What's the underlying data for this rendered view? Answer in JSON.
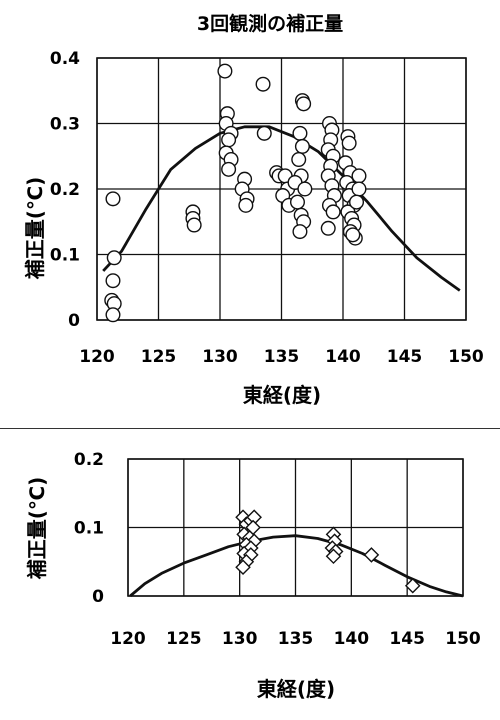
{
  "chart_data": [
    {
      "type": "scatter",
      "title": "3回観測の補正量",
      "xlabel": "東経(度)",
      "ylabel": "補正量(℃)",
      "xlim": [
        120,
        150
      ],
      "ylim": [
        0,
        0.4
      ],
      "xticks": [
        "120",
        "125",
        "130",
        "135",
        "140",
        "145",
        "150"
      ],
      "yticks": [
        "0",
        "0.1",
        "0.2",
        "0.3",
        "0.4"
      ],
      "grid": true,
      "marker": "circle",
      "points": [
        [
          121.3,
          0.185
        ],
        [
          121.4,
          0.095
        ],
        [
          121.3,
          0.06
        ],
        [
          121.2,
          0.03
        ],
        [
          121.4,
          0.025
        ],
        [
          121.3,
          0.008
        ],
        [
          127.8,
          0.165
        ],
        [
          127.8,
          0.155
        ],
        [
          127.9,
          0.145
        ],
        [
          130.4,
          0.38
        ],
        [
          130.6,
          0.315
        ],
        [
          130.5,
          0.3
        ],
        [
          130.9,
          0.285
        ],
        [
          130.7,
          0.275
        ],
        [
          130.5,
          0.255
        ],
        [
          130.9,
          0.245
        ],
        [
          130.7,
          0.23
        ],
        [
          132.0,
          0.215
        ],
        [
          131.8,
          0.2
        ],
        [
          132.2,
          0.185
        ],
        [
          132.1,
          0.175
        ],
        [
          133.5,
          0.36
        ],
        [
          133.6,
          0.285
        ],
        [
          134.6,
          0.225
        ],
        [
          134.8,
          0.22
        ],
        [
          135.3,
          0.22
        ],
        [
          135.5,
          0.2
        ],
        [
          135.1,
          0.19
        ],
        [
          135.6,
          0.175
        ],
        [
          136.7,
          0.335
        ],
        [
          136.8,
          0.33
        ],
        [
          136.5,
          0.285
        ],
        [
          136.7,
          0.265
        ],
        [
          136.4,
          0.245
        ],
        [
          136.6,
          0.22
        ],
        [
          136.1,
          0.21
        ],
        [
          136.9,
          0.2
        ],
        [
          136.3,
          0.18
        ],
        [
          136.6,
          0.16
        ],
        [
          136.8,
          0.15
        ],
        [
          136.5,
          0.135
        ],
        [
          138.9,
          0.3
        ],
        [
          139.1,
          0.29
        ],
        [
          139.0,
          0.275
        ],
        [
          138.8,
          0.26
        ],
        [
          139.2,
          0.25
        ],
        [
          139.0,
          0.235
        ],
        [
          138.8,
          0.22
        ],
        [
          139.1,
          0.205
        ],
        [
          139.3,
          0.19
        ],
        [
          138.9,
          0.175
        ],
        [
          139.2,
          0.165
        ],
        [
          138.8,
          0.14
        ],
        [
          140.4,
          0.28
        ],
        [
          140.5,
          0.27
        ],
        [
          140.2,
          0.24
        ],
        [
          140.6,
          0.225
        ],
        [
          140.3,
          0.21
        ],
        [
          140.8,
          0.2
        ],
        [
          140.5,
          0.19
        ],
        [
          140.9,
          0.175
        ],
        [
          140.4,
          0.165
        ],
        [
          140.7,
          0.155
        ],
        [
          140.9,
          0.145
        ],
        [
          140.6,
          0.135
        ],
        [
          141.0,
          0.125
        ],
        [
          140.8,
          0.13
        ],
        [
          141.3,
          0.22
        ],
        [
          141.3,
          0.2
        ],
        [
          141.1,
          0.18
        ]
      ],
      "fit_curve": [
        [
          120.5,
          0.075
        ],
        [
          122,
          0.105
        ],
        [
          124,
          0.17
        ],
        [
          125,
          0.2
        ],
        [
          126,
          0.23
        ],
        [
          128,
          0.262
        ],
        [
          130,
          0.285
        ],
        [
          132,
          0.295
        ],
        [
          134,
          0.295
        ],
        [
          136,
          0.28
        ],
        [
          138,
          0.257
        ],
        [
          140,
          0.22
        ],
        [
          142,
          0.18
        ],
        [
          144,
          0.135
        ],
        [
          146,
          0.095
        ],
        [
          148,
          0.065
        ],
        [
          149.5,
          0.045
        ]
      ]
    },
    {
      "type": "scatter",
      "title": "",
      "xlabel": "東経(度)",
      "ylabel": "補正量(℃)",
      "xlim": [
        120,
        150
      ],
      "ylim": [
        0,
        0.2
      ],
      "xticks": [
        "120",
        "125",
        "130",
        "135",
        "140",
        "145",
        "150"
      ],
      "yticks": [
        "0",
        "0.1",
        "0.2"
      ],
      "grid": true,
      "marker": "diamond",
      "points": [
        [
          130.3,
          0.115
        ],
        [
          130.6,
          0.105
        ],
        [
          131.0,
          0.11
        ],
        [
          131.3,
          0.115
        ],
        [
          131.2,
          0.1
        ],
        [
          130.4,
          0.09
        ],
        [
          130.9,
          0.085
        ],
        [
          131.3,
          0.08
        ],
        [
          130.6,
          0.075
        ],
        [
          131.0,
          0.07
        ],
        [
          130.4,
          0.062
        ],
        [
          131.0,
          0.06
        ],
        [
          130.6,
          0.05
        ],
        [
          130.3,
          0.042
        ],
        [
          138.4,
          0.09
        ],
        [
          138.5,
          0.08
        ],
        [
          138.3,
          0.07
        ],
        [
          138.6,
          0.065
        ],
        [
          138.4,
          0.058
        ],
        [
          141.8,
          0.06
        ],
        [
          145.5,
          0.015
        ]
      ],
      "fit_curve": [
        [
          120.2,
          0.0
        ],
        [
          121.5,
          0.018
        ],
        [
          123,
          0.033
        ],
        [
          125,
          0.048
        ],
        [
          127,
          0.06
        ],
        [
          129,
          0.072
        ],
        [
          131,
          0.08
        ],
        [
          133,
          0.086
        ],
        [
          135,
          0.088
        ],
        [
          137,
          0.084
        ],
        [
          139,
          0.075
        ],
        [
          141,
          0.062
        ],
        [
          143,
          0.045
        ],
        [
          145,
          0.028
        ],
        [
          147,
          0.014
        ],
        [
          148.5,
          0.006
        ],
        [
          150,
          0.0
        ]
      ]
    }
  ]
}
